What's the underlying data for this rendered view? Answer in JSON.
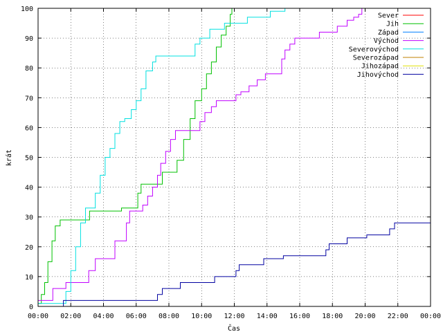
{
  "chart_data": {
    "type": "line",
    "step": true,
    "xlabel": "Čas",
    "ylabel": "krát",
    "xlim": [
      0,
      24
    ],
    "ylim": [
      0,
      100
    ],
    "x_tick_values": [
      0,
      2,
      4,
      6,
      8,
      10,
      12,
      14,
      16,
      18,
      20,
      22,
      24
    ],
    "x_tick_labels": [
      "00:00",
      "02:00",
      "04:00",
      "06:00",
      "08:00",
      "10:00",
      "12:00",
      "14:00",
      "16:00",
      "18:00",
      "20:00",
      "22:00",
      "00:00"
    ],
    "y_tick_values": [
      0,
      10,
      20,
      30,
      40,
      50,
      60,
      70,
      80,
      90,
      100
    ],
    "y_tick_labels": [
      "0",
      "10",
      "20",
      "30",
      "40",
      "50",
      "60",
      "70",
      "80",
      "90",
      "100"
    ],
    "grid": true,
    "legend_position": "top-right",
    "series": [
      {
        "name": "Sever",
        "color": "#ff0000",
        "points": []
      },
      {
        "name": "Jih",
        "color": "#00c000",
        "points": [
          [
            0.0,
            1
          ],
          [
            0.2,
            4
          ],
          [
            0.4,
            8
          ],
          [
            0.6,
            15
          ],
          [
            0.85,
            22
          ],
          [
            1.05,
            27
          ],
          [
            1.35,
            29
          ],
          [
            2.2,
            29
          ],
          [
            3.15,
            32
          ],
          [
            4.5,
            32
          ],
          [
            5.1,
            33
          ],
          [
            5.9,
            33
          ],
          [
            6.1,
            38
          ],
          [
            6.3,
            41
          ],
          [
            7.4,
            41
          ],
          [
            7.6,
            45
          ],
          [
            8.2,
            45
          ],
          [
            8.5,
            49
          ],
          [
            8.9,
            56
          ],
          [
            9.3,
            63
          ],
          [
            9.6,
            69
          ],
          [
            10.0,
            73
          ],
          [
            10.3,
            78
          ],
          [
            10.6,
            82
          ],
          [
            10.9,
            87
          ],
          [
            11.2,
            91
          ],
          [
            11.5,
            94
          ],
          [
            11.75,
            98
          ],
          [
            11.85,
            100
          ]
        ]
      },
      {
        "name": "Západ",
        "color": "#0080ff",
        "points": []
      },
      {
        "name": "Východ",
        "color": "#c000ff",
        "points": [
          [
            0.0,
            2
          ],
          [
            0.6,
            2
          ],
          [
            0.9,
            6
          ],
          [
            1.5,
            6
          ],
          [
            1.7,
            8
          ],
          [
            2.9,
            8
          ],
          [
            3.1,
            12
          ],
          [
            3.5,
            16
          ],
          [
            4.4,
            16
          ],
          [
            4.7,
            22
          ],
          [
            5.2,
            22
          ],
          [
            5.4,
            28
          ],
          [
            5.6,
            32
          ],
          [
            6.1,
            32
          ],
          [
            6.4,
            34
          ],
          [
            6.7,
            37
          ],
          [
            7.0,
            40
          ],
          [
            7.3,
            44
          ],
          [
            7.5,
            48
          ],
          [
            7.8,
            52
          ],
          [
            8.1,
            56
          ],
          [
            8.4,
            59
          ],
          [
            9.6,
            59
          ],
          [
            9.9,
            62
          ],
          [
            10.2,
            65
          ],
          [
            10.6,
            67
          ],
          [
            10.9,
            69
          ],
          [
            11.9,
            69
          ],
          [
            12.1,
            71
          ],
          [
            12.4,
            72
          ],
          [
            12.9,
            74
          ],
          [
            13.4,
            76
          ],
          [
            13.9,
            78
          ],
          [
            14.7,
            78
          ],
          [
            14.9,
            83
          ],
          [
            15.1,
            86
          ],
          [
            15.4,
            88
          ],
          [
            15.7,
            90
          ],
          [
            17.0,
            90
          ],
          [
            17.2,
            92
          ],
          [
            18.0,
            92
          ],
          [
            18.3,
            94
          ],
          [
            18.9,
            96
          ],
          [
            19.3,
            97
          ],
          [
            19.6,
            98
          ],
          [
            19.8,
            100
          ]
        ]
      },
      {
        "name": "Severovýchod",
        "color": "#00e0e0",
        "points": [
          [
            0.0,
            1
          ],
          [
            1.4,
            1
          ],
          [
            1.7,
            5
          ],
          [
            2.0,
            12
          ],
          [
            2.3,
            20
          ],
          [
            2.6,
            28
          ],
          [
            2.9,
            33
          ],
          [
            3.3,
            33
          ],
          [
            3.5,
            38
          ],
          [
            3.8,
            44
          ],
          [
            4.1,
            50
          ],
          [
            4.4,
            53
          ],
          [
            4.7,
            58
          ],
          [
            5.0,
            62
          ],
          [
            5.3,
            63
          ],
          [
            5.7,
            66
          ],
          [
            6.0,
            69
          ],
          [
            6.3,
            73
          ],
          [
            6.6,
            79
          ],
          [
            7.0,
            82
          ],
          [
            7.2,
            84
          ],
          [
            9.4,
            84
          ],
          [
            9.6,
            88
          ],
          [
            9.9,
            90
          ],
          [
            10.3,
            90
          ],
          [
            10.5,
            93
          ],
          [
            11.4,
            95
          ],
          [
            12.4,
            95
          ],
          [
            12.8,
            97
          ],
          [
            13.9,
            97
          ],
          [
            14.2,
            99
          ],
          [
            15.1,
            99
          ],
          [
            15.1,
            100
          ]
        ]
      },
      {
        "name": "Severozápad",
        "color": "#c08000",
        "points": []
      },
      {
        "name": "Jihozápad",
        "color": "#e0e000",
        "points": []
      },
      {
        "name": "Jihovýchod",
        "color": "#0000a0",
        "points": [
          [
            0.0,
            0
          ],
          [
            1.5,
            0
          ],
          [
            1.55,
            2
          ],
          [
            7.1,
            2
          ],
          [
            7.3,
            4
          ],
          [
            7.6,
            6
          ],
          [
            8.5,
            6
          ],
          [
            8.7,
            8
          ],
          [
            10.6,
            8
          ],
          [
            10.8,
            10
          ],
          [
            11.9,
            10
          ],
          [
            12.1,
            12
          ],
          [
            12.3,
            14
          ],
          [
            13.6,
            14
          ],
          [
            13.8,
            16
          ],
          [
            14.8,
            16
          ],
          [
            15.0,
            17
          ],
          [
            17.5,
            17
          ],
          [
            17.6,
            19
          ],
          [
            17.8,
            21
          ],
          [
            18.7,
            21
          ],
          [
            18.9,
            23
          ],
          [
            19.8,
            23
          ],
          [
            20.1,
            24
          ],
          [
            21.3,
            24
          ],
          [
            21.5,
            26
          ],
          [
            21.8,
            28
          ],
          [
            24.0,
            28
          ]
        ]
      }
    ]
  }
}
